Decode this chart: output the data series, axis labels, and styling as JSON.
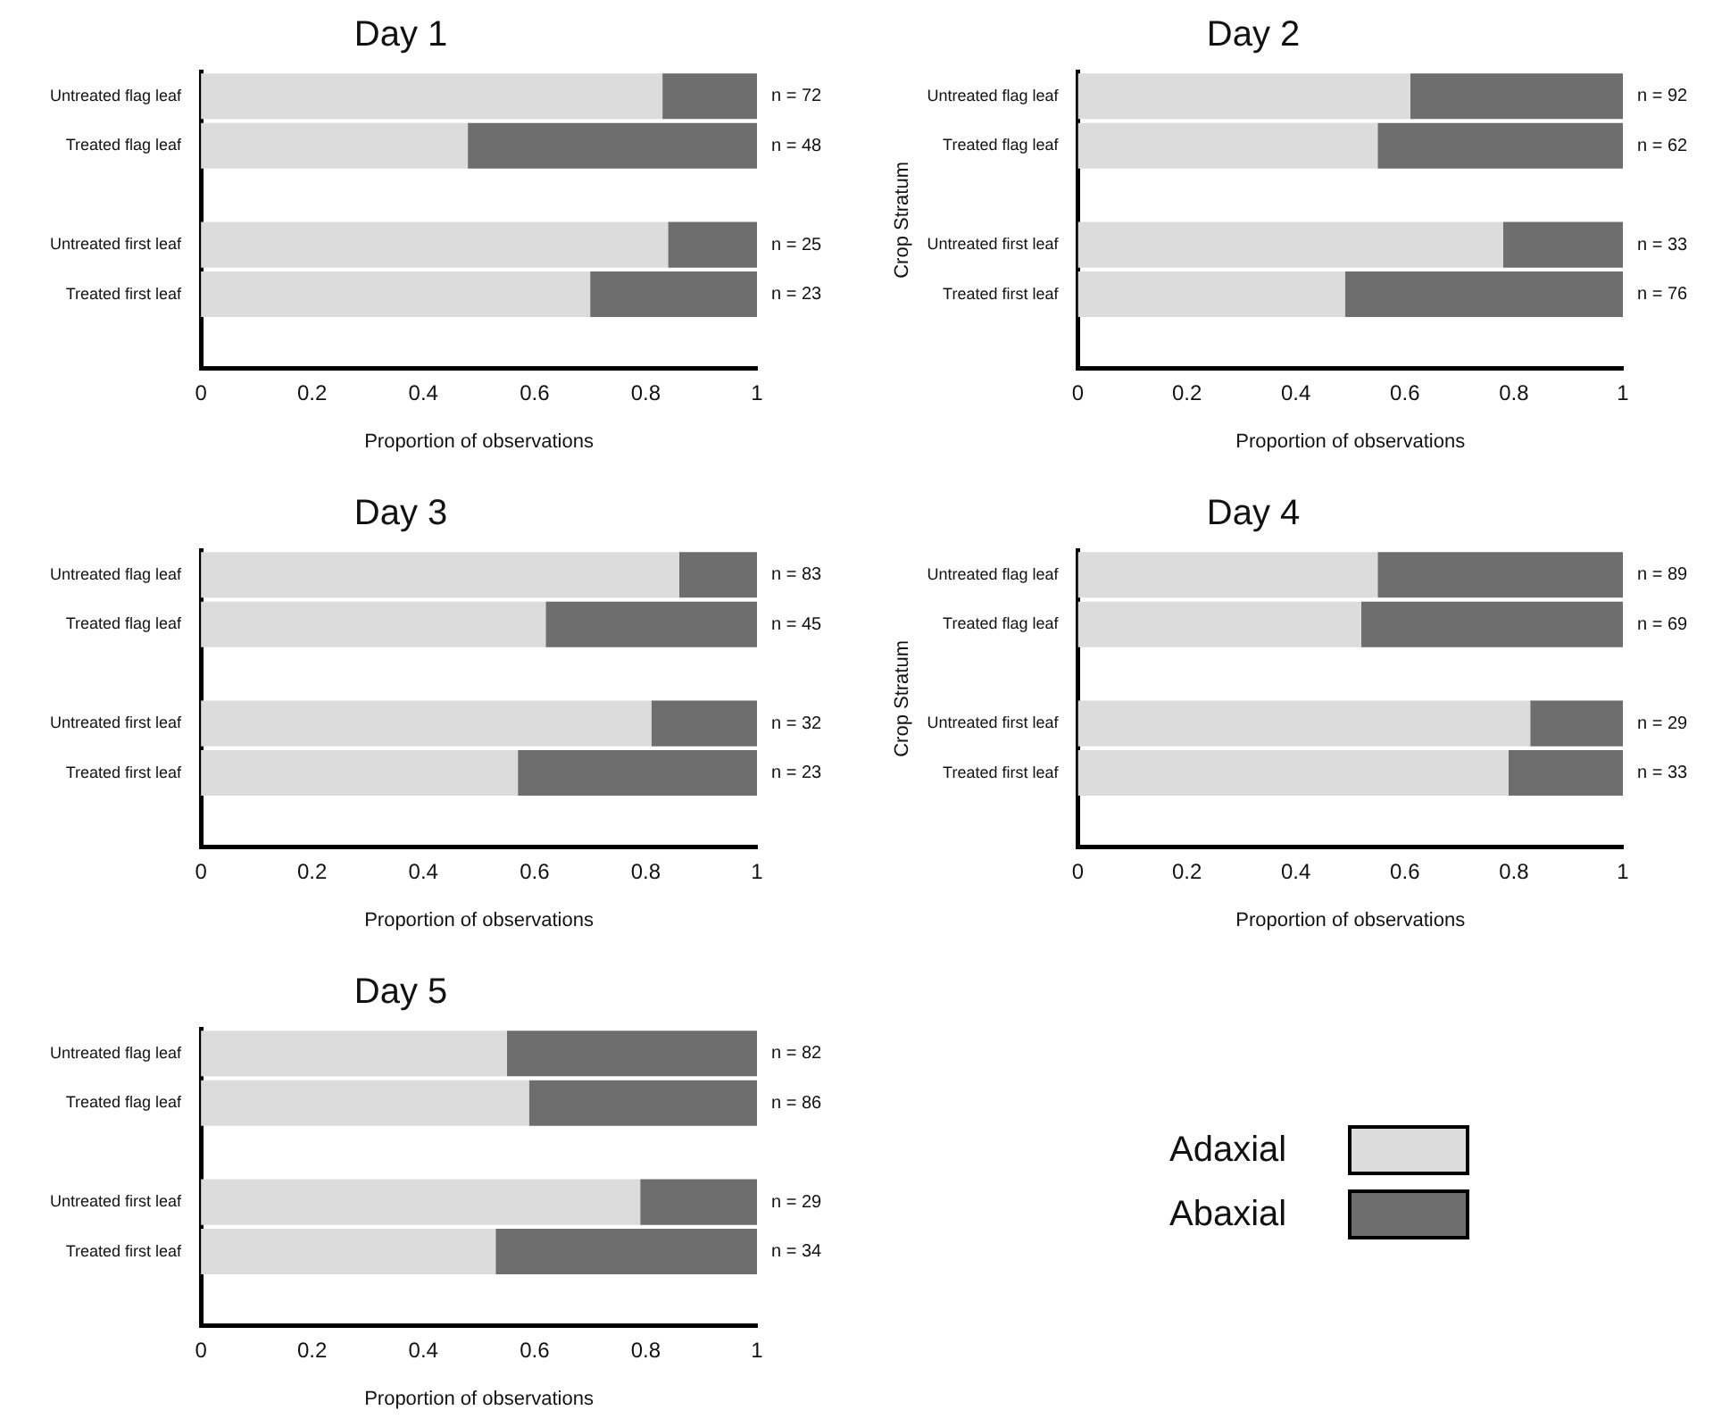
{
  "chart_data": [
    {
      "type": "bar",
      "orientation": "horizontal",
      "stacked": true,
      "title": "Day 1",
      "xlabel": "Proportion of observations",
      "categories": [
        "Untreated flag leaf",
        "Treated flag leaf",
        null,
        "Untreated first leaf",
        "Treated first leaf",
        null
      ],
      "series": [
        {
          "color": "#dcdcdc",
          "values": [
            0.83,
            0.48,
            null,
            0.84,
            0.7,
            null
          ]
        },
        {
          "color": "#6e6e6e",
          "values": [
            0.17,
            0.52,
            null,
            0.16,
            0.3,
            null
          ]
        }
      ],
      "xlim": [
        0,
        1
      ],
      "xticks": [
        0,
        0.2,
        0.4,
        0.6,
        0.8,
        1
      ],
      "grid": false,
      "legend": false,
      "annotations": [
        "n = 72",
        "n = 48",
        "n = 25",
        "n = 23"
      ]
    },
    {
      "type": "bar",
      "orientation": "horizontal",
      "stacked": true,
      "title": "Day 2",
      "xlabel": "Proportion of observations",
      "ylabel": "Crop Stratum",
      "categories": [
        "Untreated flag leaf",
        "Treated flag leaf",
        null,
        "Untreated first leaf",
        "Treated first leaf",
        null
      ],
      "series": [
        {
          "color": "#dcdcdc",
          "values": [
            0.61,
            0.55,
            null,
            0.78,
            0.49,
            null
          ]
        },
        {
          "color": "#6e6e6e",
          "values": [
            0.39,
            0.45,
            null,
            0.22,
            0.51,
            null
          ]
        }
      ],
      "xlim": [
        0,
        1
      ],
      "xticks": [
        0,
        0.2,
        0.4,
        0.6,
        0.8,
        1
      ],
      "grid": false,
      "legend": false,
      "annotations": [
        "n = 92",
        "n = 62",
        "n = 33",
        "n = 76"
      ]
    },
    {
      "type": "bar",
      "orientation": "horizontal",
      "stacked": true,
      "title": "Day 3",
      "xlabel": "Proportion of observations",
      "categories": [
        "Untreated flag leaf",
        "Treated flag leaf",
        null,
        "Untreated first leaf",
        "Treated first leaf",
        null
      ],
      "series": [
        {
          "color": "#dcdcdc",
          "values": [
            0.86,
            0.62,
            null,
            0.81,
            0.57,
            null
          ]
        },
        {
          "color": "#6e6e6e",
          "values": [
            0.14,
            0.38,
            null,
            0.19,
            0.43,
            null
          ]
        }
      ],
      "xlim": [
        0,
        1
      ],
      "xticks": [
        0,
        0.2,
        0.4,
        0.6,
        0.8,
        1
      ],
      "grid": false,
      "legend": false,
      "annotations": [
        "n = 83",
        "n = 45",
        "n = 32",
        "n = 23"
      ]
    },
    {
      "type": "bar",
      "orientation": "horizontal",
      "stacked": true,
      "title": "Day 4",
      "xlabel": "Proportion of observations",
      "ylabel": "Crop Stratum",
      "categories": [
        "Untreated flag leaf",
        "Treated flag leaf",
        null,
        "Untreated first leaf",
        "Treated first leaf",
        null
      ],
      "series": [
        {
          "color": "#dcdcdc",
          "values": [
            0.55,
            0.52,
            null,
            0.83,
            0.79,
            null
          ]
        },
        {
          "color": "#6e6e6e",
          "values": [
            0.45,
            0.48,
            null,
            0.17,
            0.21,
            null
          ]
        }
      ],
      "xlim": [
        0,
        1
      ],
      "xticks": [
        0,
        0.2,
        0.4,
        0.6,
        0.8,
        1
      ],
      "grid": false,
      "legend": false,
      "annotations": [
        "n = 89",
        "n = 69",
        "n = 29",
        "n = 33"
      ]
    },
    {
      "type": "bar",
      "orientation": "horizontal",
      "stacked": true,
      "title": "Day 5",
      "xlabel": "Proportion of observations",
      "categories": [
        "Untreated flag leaf",
        "Treated flag leaf",
        null,
        "Untreated first leaf",
        "Treated first leaf",
        null
      ],
      "series": [
        {
          "name": "Adaxial",
          "color": "#dcdcdc",
          "values": [
            0.55,
            0.59,
            null,
            0.79,
            0.53,
            null
          ]
        },
        {
          "name": "Abaxial",
          "color": "#6e6e6e",
          "values": [
            0.45,
            0.41,
            null,
            0.21,
            0.47,
            null
          ]
        }
      ],
      "xlim": [
        0,
        1
      ],
      "xticks": [
        0,
        0.2,
        0.4,
        0.6,
        0.8,
        1
      ],
      "grid": false,
      "legend": "right",
      "annotations": [
        "n = 82",
        "n = 86",
        "n = 29",
        "n = 34"
      ]
    }
  ]
}
